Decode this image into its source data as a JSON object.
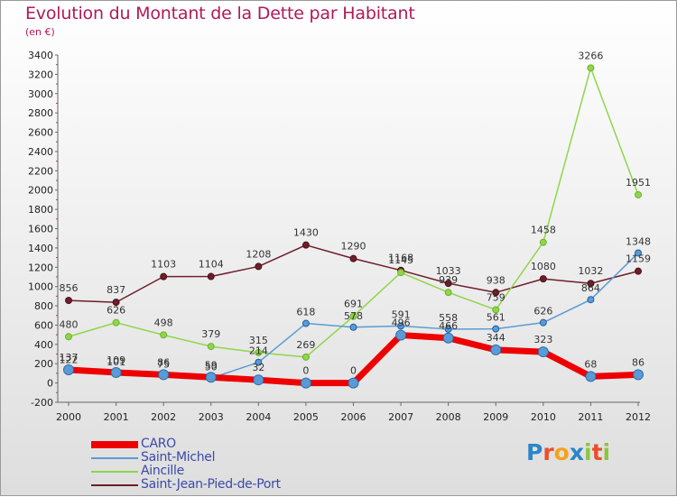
{
  "header": {
    "title": "Evolution du Montant de la Dette par Habitant",
    "unit": "(en €)"
  },
  "brand": {
    "letters": [
      {
        "ch": "P",
        "color": "#2a86c8"
      },
      {
        "ch": "r",
        "color": "#e94f2e"
      },
      {
        "ch": "o",
        "color": "#f4a21c"
      },
      {
        "ch": "x",
        "color": "#2a86c8"
      },
      {
        "ch": "i",
        "color": "#8cc63f"
      },
      {
        "ch": "t",
        "color": "#e94f2e"
      },
      {
        "ch": "i",
        "color": "#8cc63f"
      }
    ]
  },
  "chart_data": {
    "type": "line",
    "x": [
      "2000",
      "2001",
      "2002",
      "2003",
      "2004",
      "2005",
      "2006",
      "2007",
      "2008",
      "2009",
      "2010",
      "2011",
      "2012"
    ],
    "ylim": [
      -200,
      3400
    ],
    "yticks": [
      -200,
      0,
      200,
      400,
      600,
      800,
      1000,
      1200,
      1400,
      1600,
      1800,
      2000,
      2200,
      2400,
      2600,
      2800,
      3000,
      3200,
      3400
    ],
    "grid": false,
    "legend_position": "bottom-left",
    "series": [
      {
        "name": "CARO",
        "color": "#ee0000",
        "values": [
          137,
          109,
          86,
          59,
          32,
          0,
          0,
          496,
          466,
          344,
          323,
          68,
          86
        ]
      },
      {
        "name": "Saint-Michel",
        "color": "#5b9bd5",
        "values": [
          122,
          101,
          75,
          50,
          214,
          618,
          578,
          591,
          558,
          561,
          626,
          864,
          1348
        ]
      },
      {
        "name": "Aincille",
        "color": "#8fd64a",
        "values": [
          480,
          626,
          498,
          379,
          315,
          269,
          691,
          1145,
          939,
          759,
          1458,
          3266,
          1951
        ]
      },
      {
        "name": "Saint-Jean-Pied-de-Port",
        "color": "#6e1e2a",
        "values": [
          856,
          837,
          1103,
          1104,
          1208,
          1430,
          1290,
          1168,
          1033,
          938,
          1080,
          1032,
          1159
        ]
      }
    ]
  }
}
